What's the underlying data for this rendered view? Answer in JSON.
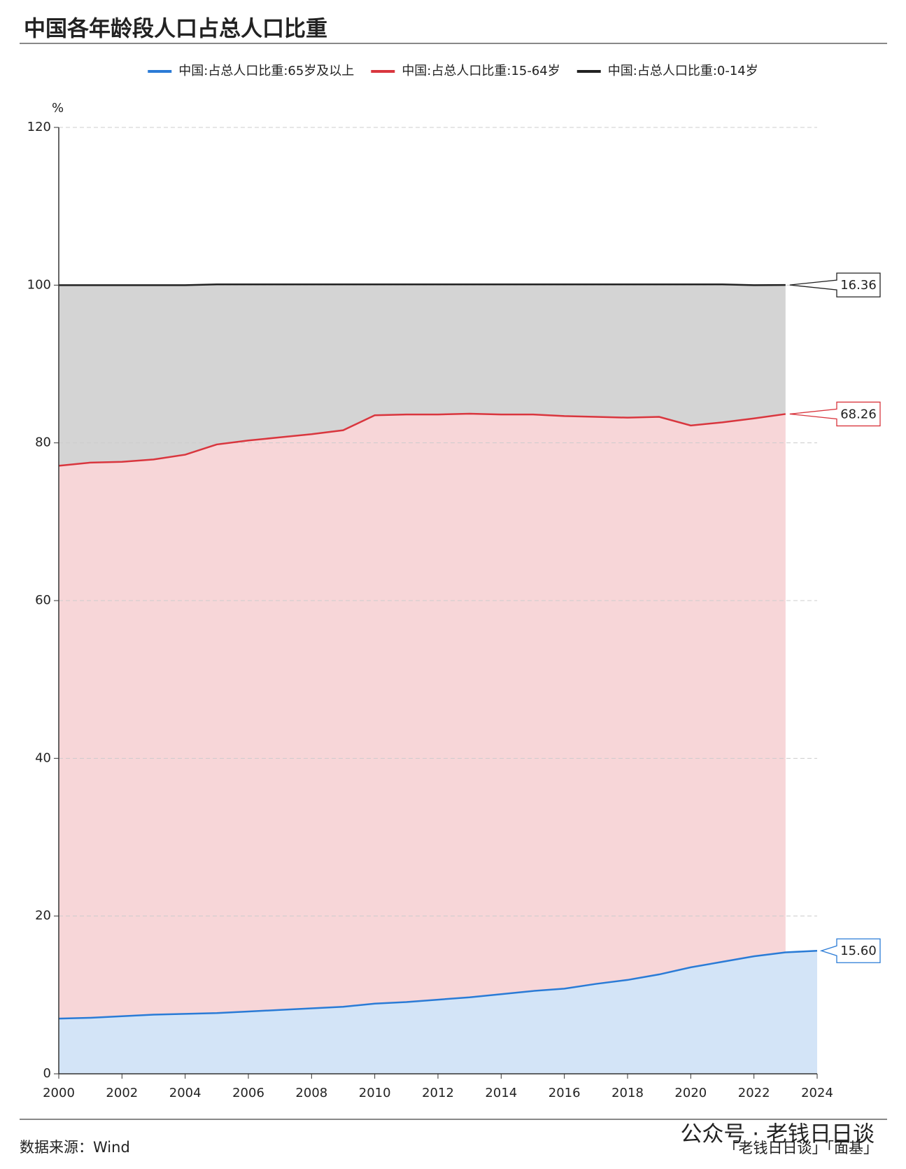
{
  "chart_data": {
    "type": "stacked_area",
    "title": "中国各年龄段人口占总人口比重",
    "y_unit": "%",
    "source": "数据来源：Wind",
    "watermark": "公众号 · 老钱日日谈",
    "credit": "「老钱日日谈」「面基」",
    "x": [
      2000,
      2001,
      2002,
      2003,
      2004,
      2005,
      2006,
      2007,
      2008,
      2009,
      2010,
      2011,
      2012,
      2013,
      2014,
      2015,
      2016,
      2017,
      2018,
      2019,
      2020,
      2021,
      2022,
      2023,
      2024
    ],
    "xlim": [
      2000,
      2024
    ],
    "xticks": [
      2000,
      2002,
      2004,
      2006,
      2008,
      2010,
      2012,
      2014,
      2016,
      2018,
      2020,
      2022,
      2024
    ],
    "ylim": [
      0,
      120
    ],
    "yticks": [
      0,
      20,
      40,
      60,
      80,
      100,
      120
    ],
    "grid": true,
    "legend": "top",
    "series": [
      {
        "name": "中国:占总人口比重:65岁及以上",
        "color": "#2a7bd6",
        "fill": "#d3e4f7",
        "values": [
          7.0,
          7.1,
          7.3,
          7.5,
          7.6,
          7.7,
          7.9,
          8.1,
          8.3,
          8.5,
          8.9,
          9.1,
          9.4,
          9.7,
          10.1,
          10.5,
          10.8,
          11.4,
          11.9,
          12.6,
          13.5,
          14.2,
          14.9,
          15.4,
          15.6
        ],
        "value_labels": [
          null,
          null,
          null,
          null,
          null,
          null,
          null,
          null,
          null,
          null,
          null,
          null,
          null,
          null,
          null,
          null,
          null,
          null,
          null,
          null,
          null,
          null,
          null,
          null,
          "15.60"
        ]
      },
      {
        "name": "中国:占总人口比重:15-64岁",
        "color": "#d9363e",
        "fill": "#f7d6d8",
        "values": [
          70.1,
          70.4,
          70.3,
          70.4,
          70.9,
          72.1,
          72.4,
          72.6,
          72.8,
          73.1,
          74.6,
          74.5,
          74.2,
          74.0,
          73.5,
          73.1,
          72.6,
          71.9,
          71.3,
          70.7,
          68.7,
          68.4,
          68.2,
          68.26,
          null
        ],
        "value_labels": [
          null,
          null,
          null,
          null,
          null,
          null,
          null,
          null,
          null,
          null,
          null,
          null,
          null,
          null,
          null,
          null,
          null,
          null,
          null,
          null,
          null,
          null,
          null,
          "68.26",
          null
        ]
      },
      {
        "name": "中国:占总人口比重:0-14岁",
        "color": "#222222",
        "fill": "#d4d4d4",
        "values": [
          22.9,
          22.5,
          22.4,
          22.1,
          21.5,
          20.3,
          19.8,
          19.4,
          19.0,
          18.5,
          16.6,
          16.5,
          16.5,
          16.4,
          16.5,
          16.5,
          16.7,
          16.8,
          16.9,
          16.8,
          17.9,
          17.5,
          16.9,
          16.36,
          null
        ],
        "value_labels": [
          null,
          null,
          null,
          null,
          null,
          null,
          null,
          null,
          null,
          null,
          null,
          null,
          null,
          null,
          null,
          null,
          null,
          null,
          null,
          null,
          null,
          null,
          null,
          "16.36",
          null
        ]
      }
    ]
  }
}
